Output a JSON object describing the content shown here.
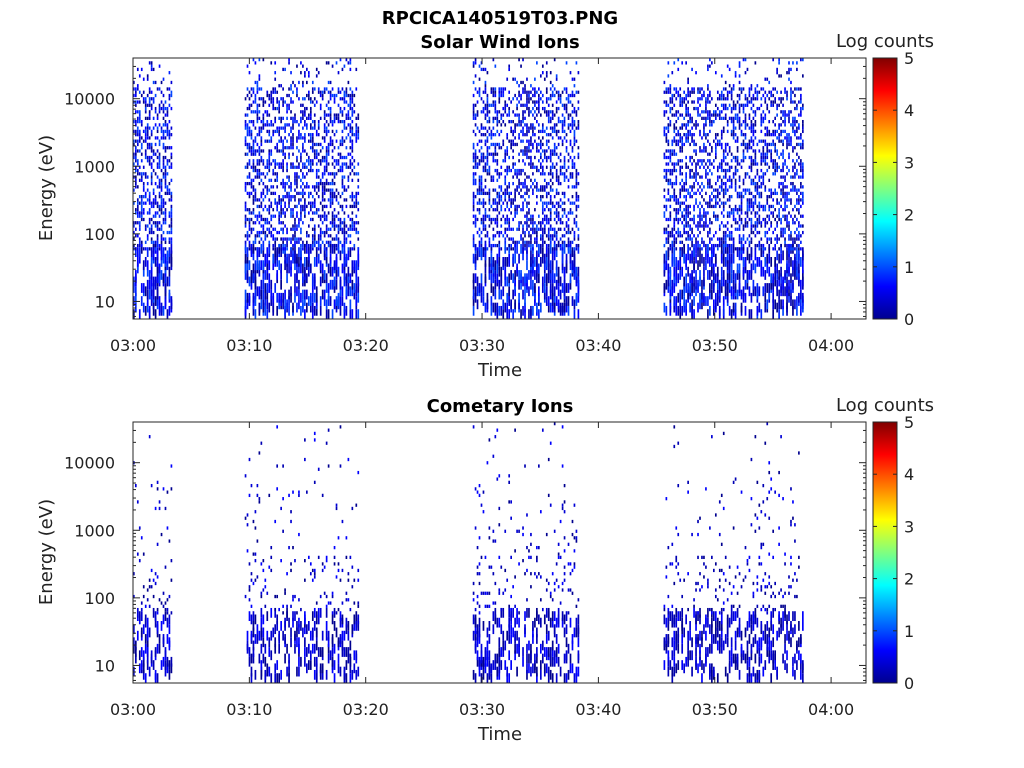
{
  "figure_title": "RPCICA140519T03.PNG",
  "chart_data": [
    {
      "type": "heatmap",
      "title": "Solar Wind Ions",
      "xlabel": "Time",
      "ylabel": "Energy (eV)",
      "x_ticks": [
        "03:00",
        "03:10",
        "03:20",
        "03:30",
        "03:40",
        "03:50",
        "04:00"
      ],
      "x_range_minutes": [
        0,
        63
      ],
      "y_ticks": [
        "10",
        "100",
        "1000",
        "10000"
      ],
      "y_tick_values": [
        10,
        100,
        1000,
        10000
      ],
      "y_range_eV": [
        5.5,
        40000
      ],
      "y_scale": "log",
      "colorbar_label": "Log counts",
      "colorbar_ticks": [
        "0",
        "1",
        "2",
        "3",
        "4",
        "5"
      ],
      "colorbar_range": [
        0,
        5
      ],
      "data_intervals_minutes": [
        [
          0,
          3.3
        ],
        [
          9.6,
          19.3
        ],
        [
          29.2,
          38.3
        ],
        [
          45.6,
          57.6
        ]
      ],
      "density": "high"
    },
    {
      "type": "heatmap",
      "title": "Cometary Ions",
      "xlabel": "Time",
      "ylabel": "Energy (eV)",
      "x_ticks": [
        "03:00",
        "03:10",
        "03:20",
        "03:30",
        "03:40",
        "03:50",
        "04:00"
      ],
      "x_range_minutes": [
        0,
        63
      ],
      "y_ticks": [
        "10",
        "100",
        "1000",
        "10000"
      ],
      "y_tick_values": [
        10,
        100,
        1000,
        10000
      ],
      "y_range_eV": [
        5.5,
        40000
      ],
      "y_scale": "log",
      "colorbar_label": "Log counts",
      "colorbar_ticks": [
        "0",
        "1",
        "2",
        "3",
        "4",
        "5"
      ],
      "colorbar_range": [
        0,
        5
      ],
      "data_intervals_minutes": [
        [
          0,
          3.3
        ],
        [
          9.6,
          19.3
        ],
        [
          29.2,
          38.3
        ],
        [
          45.6,
          57.6
        ]
      ],
      "density": "low"
    }
  ]
}
